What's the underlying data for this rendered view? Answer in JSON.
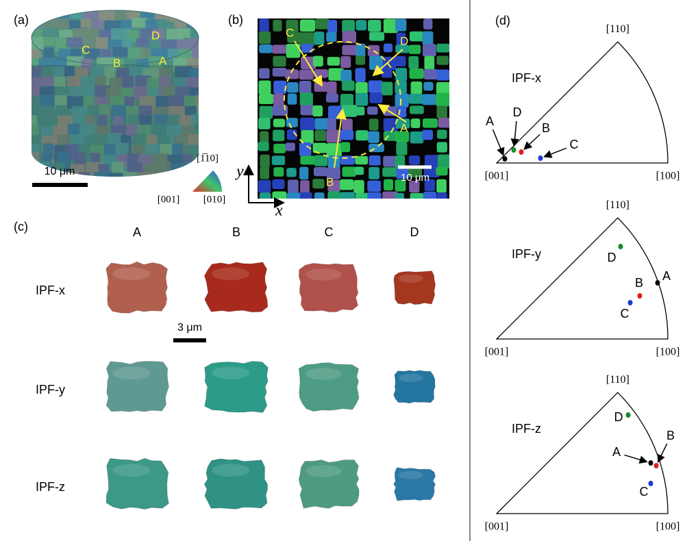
{
  "panels": {
    "a": {
      "label": "(a)",
      "grain_labels": [
        "D",
        "C",
        "B",
        "A"
      ],
      "scale_bar": "10 μm",
      "legend": {
        "top": "[1̅10]",
        "left": "[001]",
        "right": "[010]"
      }
    },
    "b": {
      "label": "(b)",
      "grain_labels": [
        "C",
        "D",
        "A",
        "B"
      ],
      "scale_bar": "10 μm",
      "axes": {
        "y": "y",
        "x": "x"
      }
    },
    "c": {
      "label": "(c)",
      "columns": [
        "A",
        "B",
        "C",
        "D"
      ],
      "rows": [
        "IPF-x",
        "IPF-y",
        "IPF-z"
      ],
      "scale_bar": "3 μm"
    },
    "d": {
      "label": "(d)",
      "plots": [
        {
          "title": "IPF-x",
          "corners": {
            "top": "[110]",
            "left": "[001]",
            "right": "[100]"
          },
          "points": [
            "A",
            "D",
            "B",
            "C"
          ]
        },
        {
          "title": "IPF-y",
          "corners": {
            "top": "[110]",
            "left": "[001]",
            "right": "[100]"
          },
          "points": [
            "A",
            "D",
            "B",
            "C"
          ]
        },
        {
          "title": "IPF-z",
          "corners": {
            "top": "[110]",
            "left": "[001]",
            "right": "[100]"
          },
          "points": [
            "A",
            "D",
            "B",
            "C"
          ]
        }
      ]
    }
  }
}
